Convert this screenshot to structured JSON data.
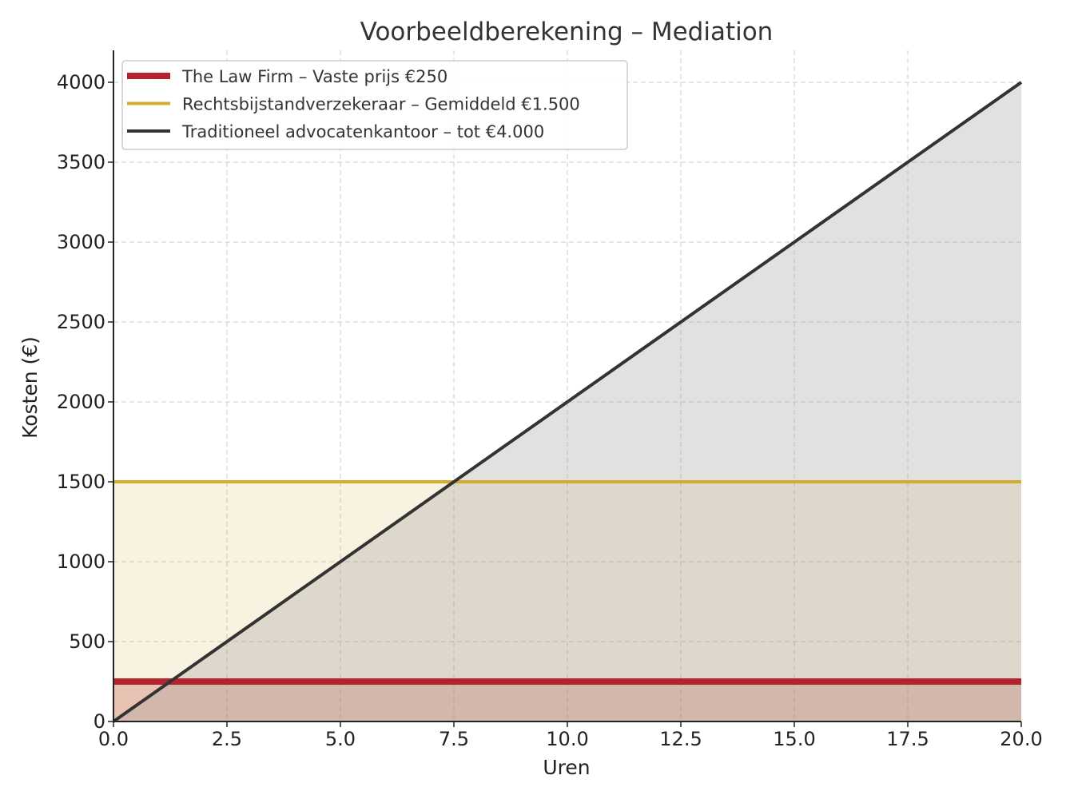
{
  "chart_data": {
    "type": "line",
    "title": "Voorbeeldberekening – Mediation",
    "xlabel": "Uren",
    "ylabel": "Kosten (€)",
    "xlim": [
      0,
      20
    ],
    "ylim": [
      0,
      4200
    ],
    "x_ticks": [
      0,
      2.5,
      5,
      7.5,
      10,
      12.5,
      15,
      17.5,
      20
    ],
    "x_tick_labels": [
      "0.0",
      "2.5",
      "5.0",
      "7.5",
      "10.0",
      "12.5",
      "15.0",
      "17.5",
      "20.0"
    ],
    "y_ticks": [
      0,
      500,
      1000,
      1500,
      2000,
      2500,
      3000,
      3500,
      4000
    ],
    "y_tick_labels": [
      "0",
      "500",
      "1000",
      "1500",
      "2000",
      "2500",
      "3000",
      "3500",
      "4000"
    ],
    "grid": true,
    "legend_position": "top-left",
    "series": [
      {
        "name": "The Law Firm – Vaste prijs €250",
        "color": "#b5232f",
        "fill": "#b5232f",
        "x": [
          0,
          20
        ],
        "y": [
          250,
          250
        ]
      },
      {
        "name": "Rechtsbijstandverzekeraar – Gemiddeld €1.500",
        "color": "#d4aa30",
        "fill": "#d4aa30",
        "x": [
          0,
          20
        ],
        "y": [
          1500,
          1500
        ]
      },
      {
        "name": "Traditioneel advocatenkantoor – tot €4.000",
        "color": "#333333",
        "fill": "#9a9a9a",
        "x": [
          0,
          20
        ],
        "y": [
          0,
          4000
        ]
      }
    ]
  }
}
